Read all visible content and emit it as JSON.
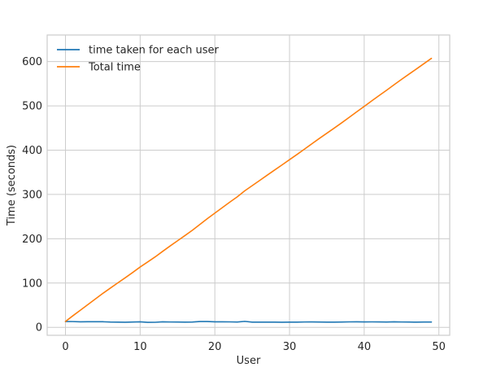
{
  "chart_data": {
    "type": "line",
    "title": "",
    "xlabel": "User",
    "ylabel": "Time (seconds)",
    "xlim": [
      -2.45,
      51.45
    ],
    "ylim": [
      -18,
      660
    ],
    "xticks": [
      0,
      10,
      20,
      30,
      40,
      50
    ],
    "yticks": [
      0,
      100,
      200,
      300,
      400,
      500,
      600
    ],
    "grid": true,
    "legend_position": "top-left",
    "x": [
      0,
      1,
      2,
      3,
      4,
      5,
      6,
      7,
      8,
      9,
      10,
      11,
      12,
      13,
      14,
      15,
      16,
      17,
      18,
      19,
      20,
      21,
      22,
      23,
      24,
      25,
      26,
      27,
      28,
      29,
      30,
      31,
      32,
      33,
      34,
      35,
      36,
      37,
      38,
      39,
      40,
      41,
      42,
      43,
      44,
      45,
      46,
      47,
      48,
      49
    ],
    "series": [
      {
        "name": "time taken for each user",
        "color": "#1f77b4",
        "values": [
          13.2,
          13.0,
          12.5,
          12.6,
          12.7,
          12.6,
          11.9,
          11.8,
          11.6,
          11.9,
          12.4,
          11.3,
          11.4,
          12.5,
          12.1,
          11.9,
          11.8,
          12.0,
          13.2,
          13.1,
          12.4,
          12.4,
          12.3,
          12.0,
          13.5,
          11.8,
          11.7,
          11.8,
          11.7,
          11.6,
          11.8,
          11.7,
          12.1,
          12.2,
          12.0,
          11.8,
          11.7,
          11.9,
          12.3,
          12.4,
          12.2,
          12.3,
          12.2,
          12.0,
          12.4,
          12.1,
          11.9,
          11.7,
          11.9,
          12.0
        ]
      },
      {
        "name": "Total time",
        "color": "#ff7f0e",
        "values": [
          13.2,
          26.2,
          38.7,
          51.3,
          64.0,
          76.6,
          88.5,
          100.3,
          111.9,
          123.8,
          136.2,
          147.5,
          158.9,
          171.4,
          183.5,
          195.4,
          207.2,
          219.2,
          232.4,
          245.5,
          257.9,
          270.3,
          282.6,
          294.6,
          308.1,
          319.9,
          331.6,
          343.4,
          355.1,
          366.7,
          378.5,
          390.2,
          402.3,
          414.5,
          426.5,
          438.3,
          450.0,
          461.9,
          474.2,
          486.6,
          498.8,
          511.1,
          523.3,
          535.3,
          547.7,
          559.8,
          571.7,
          583.4,
          595.3,
          607.3
        ]
      }
    ]
  }
}
